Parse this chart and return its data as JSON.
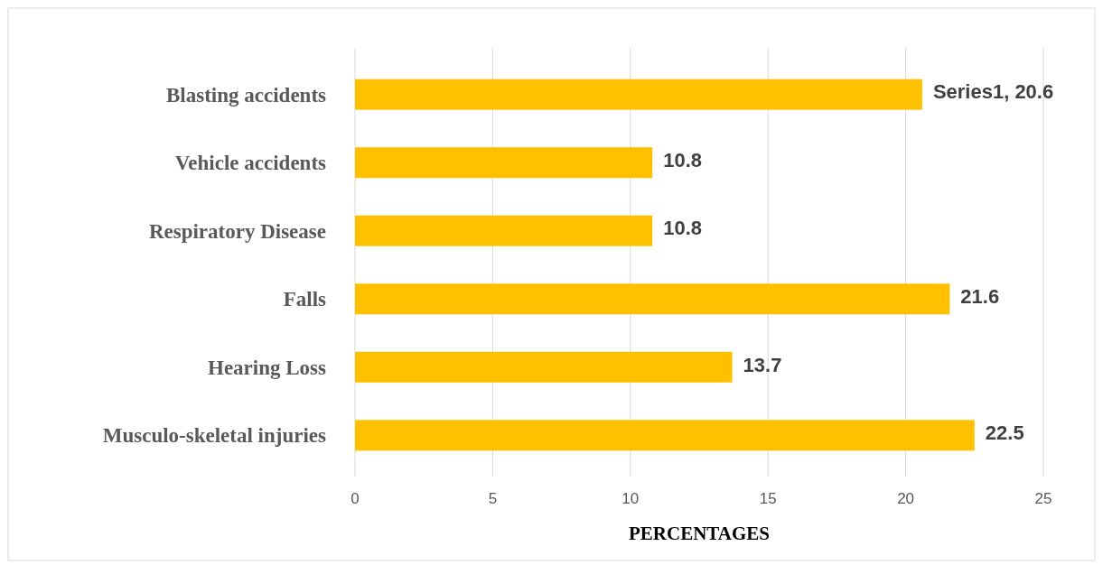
{
  "chart_data": {
    "type": "bar",
    "orientation": "horizontal",
    "xlabel": "PERCENTAGES",
    "categories": [
      "Blasting accidents",
      "Vehicle accidents",
      "Respiratory Disease",
      "Falls",
      "Hearing Loss",
      "Musculo-skeletal injuries"
    ],
    "values": [
      20.6,
      10.8,
      10.8,
      21.6,
      13.7,
      22.5
    ],
    "value_labels": [
      "Series1, 20.6",
      "10.8",
      "10.8",
      "21.6",
      "13.7",
      "22.5"
    ],
    "color": "#ffc000",
    "xlim": [
      0,
      25
    ],
    "xticks": [
      0,
      5,
      10,
      15,
      20,
      25
    ],
    "grid": "x"
  }
}
